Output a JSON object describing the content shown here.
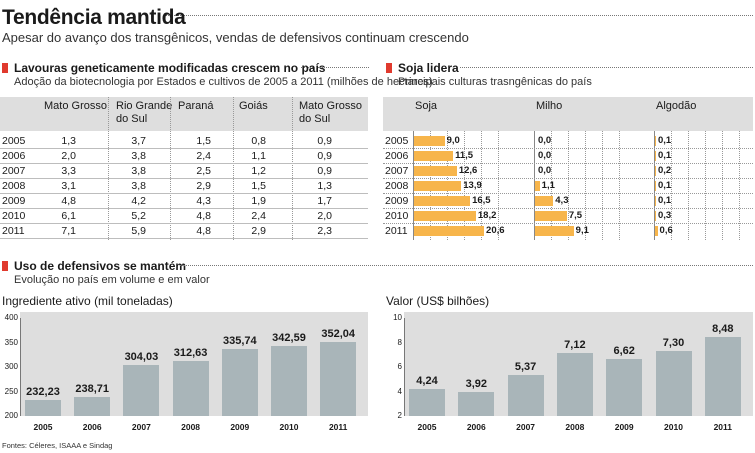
{
  "header": {
    "title": "Tendência mantida",
    "subtitle": "Apesar do avanço dos transgênicos, vendas de defensivos continuam crescendo"
  },
  "colors": {
    "accent": "#e03a2e",
    "bar_orange": "#f7b54b",
    "bar_gray": "#a9b5b9",
    "panel_gray": "#dedede"
  },
  "table_section": {
    "title": "Lavouras geneticamente modificadas crescem no país",
    "subtitle": "Adoção da biotecnologia por Estados e cultivos de 2005 a 2011 (milhões de hectares)",
    "columns": [
      "Mato Grosso",
      "Rio Grande do Sul",
      "Paraná",
      "Goiás",
      "Mato Grosso do Sul"
    ],
    "column_lines": [
      [
        "Mato Grosso",
        ""
      ],
      [
        "Rio Grande",
        "do Sul"
      ],
      [
        "Paraná",
        ""
      ],
      [
        "Goiás",
        ""
      ],
      [
        "Mato Grosso",
        "do Sul"
      ]
    ],
    "years": [
      "2005",
      "2006",
      "2007",
      "2008",
      "2009",
      "2010",
      "2011"
    ],
    "rows": [
      [
        "1,3",
        "3,7",
        "1,5",
        "0,8",
        "0,9"
      ],
      [
        "2,0",
        "3,8",
        "2,4",
        "1,1",
        "0,9"
      ],
      [
        "3,3",
        "3,8",
        "2,5",
        "1,2",
        "0,9"
      ],
      [
        "3,1",
        "3,8",
        "2,9",
        "1,5",
        "1,3"
      ],
      [
        "4,8",
        "4,2",
        "4,3",
        "1,9",
        "1,7"
      ],
      [
        "6,1",
        "5,2",
        "4,8",
        "2,4",
        "2,0"
      ],
      [
        "7,1",
        "5,9",
        "4,8",
        "2,9",
        "2,3"
      ]
    ]
  },
  "soja_section": {
    "title": "Soja lidera",
    "subtitle": "Principais culturas trasngênicas do país"
  },
  "uso_section": {
    "title": "Uso de defensivos se mantém",
    "subtitle": "Evolução no país em volume e em valor"
  },
  "chart_data": [
    {
      "type": "bar",
      "orientation": "horizontal",
      "categories": [
        "2005",
        "2006",
        "2007",
        "2008",
        "2009",
        "2010",
        "2011"
      ],
      "series": [
        {
          "name": "Soja",
          "values": [
            9.0,
            11.5,
            12.6,
            13.9,
            16.5,
            18.2,
            20.6
          ],
          "labels": [
            "9,0",
            "11,5",
            "12,6",
            "13,9",
            "16,5",
            "18,2",
            "20,6"
          ],
          "max": 25
        },
        {
          "name": "Milho",
          "values": [
            0.0,
            0.0,
            0.0,
            1.1,
            4.3,
            7.5,
            9.1
          ],
          "labels": [
            "0,0",
            "0,0",
            "0,0",
            "1,1",
            "4,3",
            "7,5",
            "9,1"
          ],
          "max": 20
        },
        {
          "name": "Algodão",
          "values": [
            0.1,
            0.1,
            0.2,
            0.1,
            0.1,
            0.3,
            0.6
          ],
          "labels": [
            "0,1",
            "0,1",
            "0,2",
            "0,1",
            "0,1",
            "0,3",
            "0,6"
          ],
          "max": 20
        }
      ]
    },
    {
      "type": "bar",
      "title": "Ingrediente ativo (mil toneladas)",
      "categories": [
        "2005",
        "2006",
        "2007",
        "2008",
        "2009",
        "2010",
        "2011"
      ],
      "values": [
        232.23,
        238.71,
        304.03,
        312.63,
        335.74,
        342.59,
        352.04
      ],
      "labels": [
        "232,23",
        "238,71",
        "304,03",
        "312,63",
        "335,74",
        "342,59",
        "352,04"
      ],
      "ylim": [
        200,
        400
      ],
      "yticks": [
        "400",
        "350",
        "300",
        "250",
        "200"
      ]
    },
    {
      "type": "bar",
      "title": "Valor (US$ bilhões)",
      "categories": [
        "2005",
        "2006",
        "2007",
        "2008",
        "2009",
        "2010",
        "2011"
      ],
      "values": [
        4.24,
        3.92,
        5.37,
        7.12,
        6.62,
        7.3,
        8.48
      ],
      "labels": [
        "4,24",
        "3,92",
        "5,37",
        "7,12",
        "6,62",
        "7,30",
        "8,48"
      ],
      "ylim": [
        2,
        10
      ],
      "yticks": [
        "10",
        "8",
        "6",
        "4",
        "2"
      ]
    }
  ],
  "footer": {
    "source": "Fontes: Céleres, ISAAA e Sindag"
  }
}
